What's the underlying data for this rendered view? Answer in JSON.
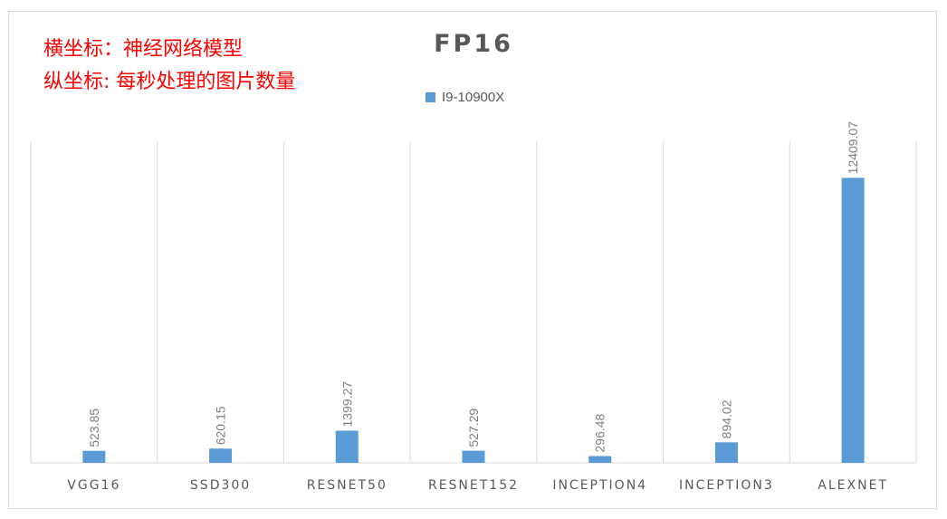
{
  "annotations": {
    "x_note": "横坐标：神经网络模型",
    "y_note": "纵坐标: 每秒处理的图片数量"
  },
  "colors": {
    "bar": "#5b9bd5",
    "gridline": "#d9d9d9",
    "axis_text": "#595959",
    "label_text": "#7f7f7f",
    "annotation_text": "#ff0000"
  },
  "chart_data": {
    "type": "bar",
    "title": "FP16",
    "xlabel": "",
    "ylabel": "",
    "legend_position": "top",
    "grid": "vertical category separators",
    "categories": [
      "VGG16",
      "SSD300",
      "RESNET50",
      "RESNET152",
      "INCEPTION4",
      "INCEPTION3",
      "ALEXNET"
    ],
    "series": [
      {
        "name": "I9-10900X",
        "values": [
          523.85,
          620.15,
          1399.27,
          527.29,
          296.48,
          894.02,
          12409.07
        ],
        "value_labels": [
          "523.85",
          "620.15",
          "1399.27",
          "527.29",
          "296.48",
          "894.02",
          "12409.07"
        ]
      }
    ],
    "ylim": [
      0,
      14000
    ]
  }
}
